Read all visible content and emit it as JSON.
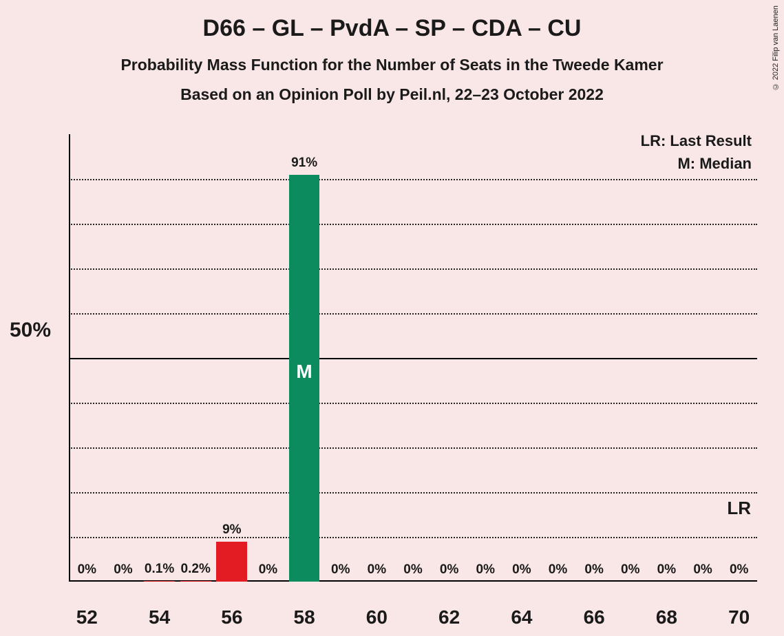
{
  "copyright": "© 2022 Filip van Laenen",
  "title": "D66 – GL – PvdA – SP – CDA – CU",
  "subtitle1": "Probability Mass Function for the Number of Seats in the Tweede Kamer",
  "subtitle2": "Based on an Opinion Poll by Peil.nl, 22–23 October 2022",
  "legend": {
    "lr": "LR: Last Result",
    "m": "M: Median"
  },
  "yaxis": {
    "label": "50%",
    "max": 100,
    "gridStep": 10,
    "solidAt": 50
  },
  "xaxis": {
    "min": 52,
    "max": 70,
    "tickLabels": [
      "52",
      "54",
      "56",
      "58",
      "60",
      "62",
      "64",
      "66",
      "68",
      "70"
    ],
    "tickPositions": [
      52,
      54,
      56,
      58,
      60,
      62,
      64,
      66,
      68,
      70
    ]
  },
  "chart": {
    "type": "bar",
    "background": "#f9e6e6",
    "gridColor": "#000000",
    "barWidthFrac": 0.85,
    "colors": {
      "below": "#e31b23",
      "median": "#0c8b5e",
      "above": "#6a6a6a"
    },
    "medianSeat": 58,
    "lrSeat": 70,
    "medianGlyph": "M",
    "lrGlyph": "LR",
    "bars": [
      {
        "seat": 52,
        "value": 0,
        "label": "0%"
      },
      {
        "seat": 53,
        "value": 0,
        "label": "0%"
      },
      {
        "seat": 54,
        "value": 0.1,
        "label": "0.1%"
      },
      {
        "seat": 55,
        "value": 0.2,
        "label": "0.2%"
      },
      {
        "seat": 56,
        "value": 9,
        "label": "9%"
      },
      {
        "seat": 57,
        "value": 0,
        "label": "0%"
      },
      {
        "seat": 58,
        "value": 91,
        "label": "91%"
      },
      {
        "seat": 59,
        "value": 0,
        "label": "0%"
      },
      {
        "seat": 60,
        "value": 0,
        "label": "0%"
      },
      {
        "seat": 61,
        "value": 0,
        "label": "0%"
      },
      {
        "seat": 62,
        "value": 0,
        "label": "0%"
      },
      {
        "seat": 63,
        "value": 0,
        "label": "0%"
      },
      {
        "seat": 64,
        "value": 0,
        "label": "0%"
      },
      {
        "seat": 65,
        "value": 0,
        "label": "0%"
      },
      {
        "seat": 66,
        "value": 0,
        "label": "0%"
      },
      {
        "seat": 67,
        "value": 0,
        "label": "0%"
      },
      {
        "seat": 68,
        "value": 0,
        "label": "0%"
      },
      {
        "seat": 69,
        "value": 0,
        "label": "0%"
      },
      {
        "seat": 70,
        "value": 0,
        "label": "0%"
      }
    ]
  },
  "layout": {
    "plotLeft": 100,
    "plotTop": 195,
    "plotWidth": 1000,
    "plotHeight": 650,
    "xLabelOffset": 36
  }
}
